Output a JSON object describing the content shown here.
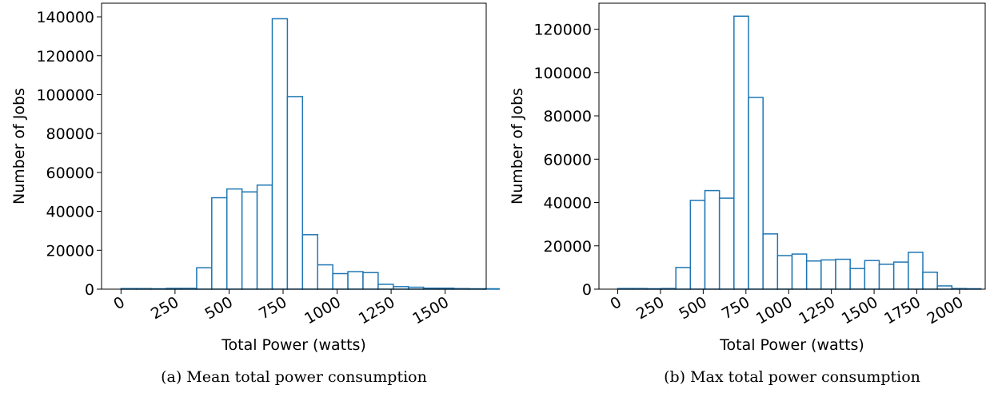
{
  "chart_data": [
    {
      "type": "bar",
      "subtype": "histogram",
      "caption": "(a) Mean total power consumption",
      "xlabel": "Total Power (watts)",
      "ylabel": "Number of Jobs",
      "xlim": [
        -90,
        1690
      ],
      "ylim": [
        0,
        147000
      ],
      "x_ticks": [
        0,
        250,
        500,
        750,
        1000,
        1250,
        1500
      ],
      "x_tick_labels": [
        "0",
        "250",
        "500",
        "750",
        "1000",
        "1250",
        "1500"
      ],
      "y_ticks": [
        0,
        20000,
        40000,
        60000,
        80000,
        100000,
        120000,
        140000
      ],
      "y_tick_labels": [
        "0",
        "20000",
        "40000",
        "60000",
        "80000",
        "100000",
        "120000",
        "140000"
      ],
      "bin_start": 0,
      "bin_width": 70,
      "values": [
        300,
        300,
        200,
        400,
        400,
        11000,
        47000,
        51500,
        50000,
        53500,
        139000,
        99000,
        28000,
        12500,
        8000,
        9000,
        8500,
        2500,
        1300,
        1000,
        500,
        500,
        300,
        200,
        200
      ],
      "bar_edge_color": "#1f77b4",
      "bar_fill_color": "#ffffff",
      "grid": false
    },
    {
      "type": "bar",
      "subtype": "histogram",
      "caption": "(b) Max total power consumption",
      "xlabel": "Total Power (watts)",
      "ylabel": "Number of Jobs",
      "xlim": [
        -110,
        2150
      ],
      "ylim": [
        0,
        132000
      ],
      "x_ticks": [
        0,
        250,
        500,
        750,
        1000,
        1250,
        1500,
        1750,
        2000
      ],
      "x_tick_labels": [
        "0",
        "250",
        "500",
        "750",
        "1000",
        "1250",
        "1500",
        "1750",
        "2000"
      ],
      "y_ticks": [
        0,
        20000,
        40000,
        60000,
        80000,
        100000,
        120000
      ],
      "y_tick_labels": [
        "0",
        "20000",
        "40000",
        "60000",
        "80000",
        "100000",
        "120000"
      ],
      "bin_start": 0,
      "bin_width": 85,
      "values": [
        300,
        300,
        200,
        300,
        10000,
        41000,
        45500,
        42000,
        126000,
        88500,
        25500,
        15500,
        16200,
        13000,
        13500,
        13800,
        9500,
        13200,
        11500,
        12500,
        17000,
        7800,
        1500,
        300,
        200
      ],
      "bar_edge_color": "#1f77b4",
      "bar_fill_color": "#ffffff",
      "grid": false
    }
  ]
}
